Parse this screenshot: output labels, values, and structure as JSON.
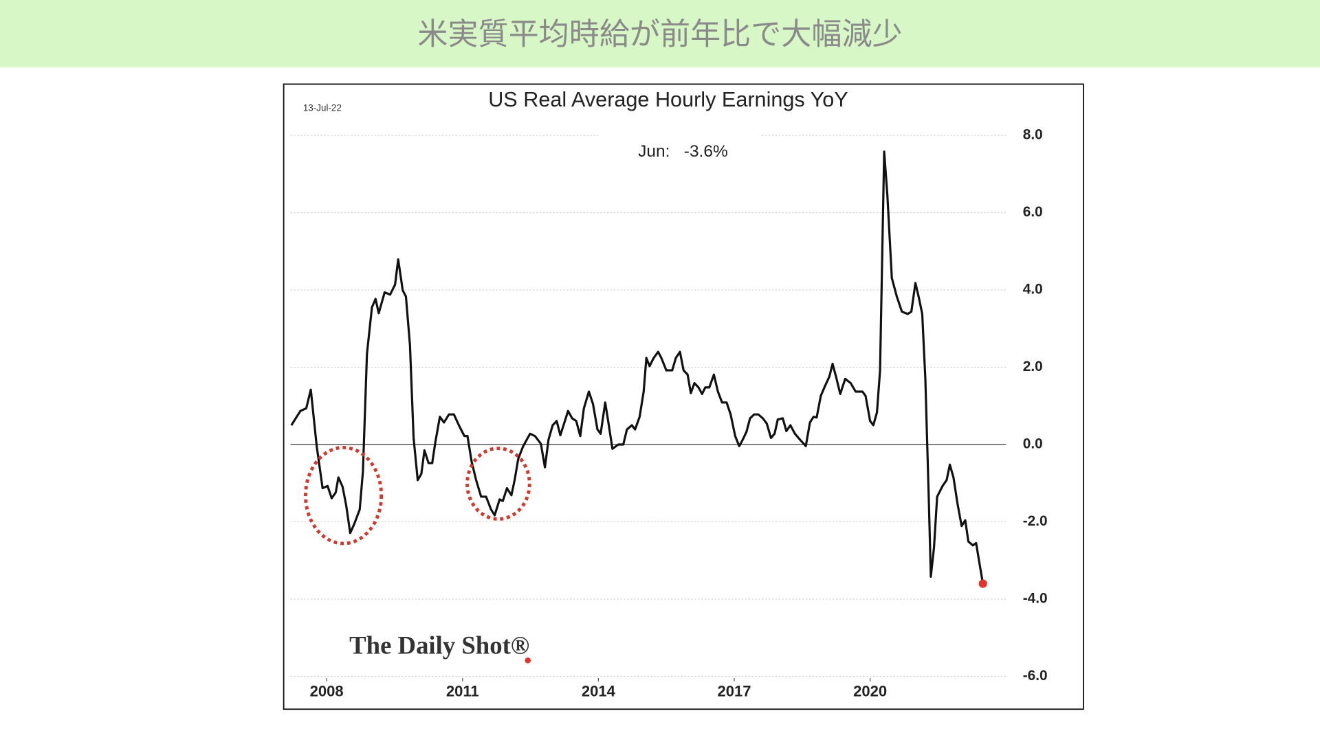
{
  "header": {
    "title": "米実質平均時給が前年比で大幅減少"
  },
  "chart_data": {
    "type": "line",
    "title": "US Real Average Hourly Earnings YoY",
    "date": "13-Jul-22",
    "annotation": "Jun:   -3.6%",
    "source": "The Daily Shot®",
    "color": "#111111",
    "marker_color": "#e0352b",
    "grid": true,
    "y_axis_side": "right",
    "x": [
      2007.22,
      2007.42,
      2007.55,
      2007.65,
      2007.78,
      2007.91,
      2008.02,
      2008.11,
      2008.2,
      2008.26,
      2008.35,
      2008.43,
      2008.52,
      2008.61,
      2008.73,
      2008.8,
      2008.89,
      2009.0,
      2009.08,
      2009.15,
      2009.28,
      2009.4,
      2009.51,
      2009.58,
      2009.68,
      2009.75,
      2009.84,
      2009.92,
      2010.01,
      2010.09,
      2010.16,
      2010.25,
      2010.33,
      2010.4,
      2010.5,
      2010.59,
      2010.7,
      2010.81,
      2010.92,
      2011.04,
      2011.11,
      2011.2,
      2011.3,
      2011.41,
      2011.52,
      2011.63,
      2011.71,
      2011.82,
      2011.89,
      2011.98,
      2012.08,
      2012.15,
      2012.23,
      2012.34,
      2012.49,
      2012.6,
      2012.73,
      2012.82,
      2012.9,
      2012.99,
      2013.08,
      2013.16,
      2013.23,
      2013.33,
      2013.42,
      2013.51,
      2013.6,
      2013.68,
      2013.79,
      2013.88,
      2013.98,
      2014.05,
      2014.15,
      2014.22,
      2014.31,
      2014.44,
      2014.55,
      2014.63,
      2014.74,
      2014.81,
      2014.91,
      2015.0,
      2015.06,
      2015.13,
      2015.22,
      2015.32,
      2015.39,
      2015.5,
      2015.63,
      2015.71,
      2015.8,
      2015.88,
      2015.97,
      2016.04,
      2016.12,
      2016.21,
      2016.29,
      2016.36,
      2016.45,
      2016.55,
      2016.64,
      2016.73,
      2016.83,
      2016.92,
      2017.02,
      2017.11,
      2017.18,
      2017.27,
      2017.35,
      2017.44,
      2017.53,
      2017.63,
      2017.72,
      2017.81,
      2017.89,
      2017.96,
      2018.07,
      2018.15,
      2018.24,
      2018.34,
      2018.45,
      2018.58,
      2018.67,
      2018.75,
      2018.82,
      2018.91,
      2019.01,
      2019.1,
      2019.17,
      2019.25,
      2019.34,
      2019.45,
      2019.57,
      2019.68,
      2019.75,
      2019.83,
      2019.9,
      2020.0,
      2020.07,
      2020.15,
      2020.22,
      2020.31,
      2020.38,
      2020.48,
      2020.59,
      2020.7,
      2020.83,
      2020.91,
      2021.0,
      2021.07,
      2021.15,
      2021.22,
      2021.3,
      2021.34,
      2021.41,
      2021.48,
      2021.6,
      2021.69,
      2021.76,
      2021.84,
      2021.93,
      2022.02,
      2022.1,
      2022.17,
      2022.27,
      2022.34,
      2022.41,
      2022.49
    ],
    "values": [
      0.5,
      0.87,
      0.94,
      1.42,
      -0.04,
      -1.13,
      -1.07,
      -1.39,
      -1.24,
      -0.85,
      -1.09,
      -1.57,
      -2.29,
      -2.05,
      -1.68,
      -0.7,
      2.35,
      3.55,
      3.77,
      3.4,
      3.94,
      3.88,
      4.14,
      4.79,
      3.99,
      3.83,
      2.57,
      0.17,
      -0.92,
      -0.76,
      -0.15,
      -0.48,
      -0.48,
      0.07,
      0.72,
      0.57,
      0.78,
      0.78,
      0.5,
      0.22,
      0.22,
      -0.44,
      -0.92,
      -1.35,
      -1.35,
      -1.68,
      -1.83,
      -1.42,
      -1.46,
      -1.13,
      -1.31,
      -0.92,
      -0.37,
      -0.04,
      0.28,
      0.22,
      0.02,
      -0.59,
      0.13,
      0.5,
      0.61,
      0.24,
      0.5,
      0.87,
      0.68,
      0.61,
      0.22,
      0.94,
      1.37,
      1.05,
      0.39,
      0.28,
      1.09,
      0.57,
      -0.11,
      0.0,
      0.0,
      0.39,
      0.5,
      0.39,
      0.72,
      1.37,
      2.24,
      2.03,
      2.24,
      2.4,
      2.24,
      1.92,
      1.92,
      2.24,
      2.4,
      1.92,
      1.81,
      1.33,
      1.59,
      1.48,
      1.31,
      1.48,
      1.48,
      1.81,
      1.37,
      1.09,
      1.09,
      0.78,
      0.22,
      -0.04,
      0.11,
      0.33,
      0.68,
      0.78,
      0.78,
      0.68,
      0.54,
      0.17,
      0.28,
      0.65,
      0.68,
      0.35,
      0.5,
      0.28,
      0.13,
      -0.04,
      0.57,
      0.72,
      0.7,
      1.26,
      1.53,
      1.76,
      2.09,
      1.74,
      1.31,
      1.7,
      1.59,
      1.37,
      1.37,
      1.37,
      1.26,
      0.61,
      0.5,
      0.83,
      1.92,
      7.58,
      6.45,
      4.31,
      3.83,
      3.44,
      3.38,
      3.44,
      4.18,
      3.83,
      3.38,
      1.7,
      -1.57,
      -3.42,
      -2.66,
      -1.35,
      -1.07,
      -0.92,
      -0.52,
      -0.85,
      -1.53,
      -2.11,
      -1.96,
      -2.51,
      -2.61,
      -2.55,
      -3.05,
      -3.6
    ],
    "xlim": [
      2007.2,
      2023.0
    ],
    "xticks": [
      2008,
      2011,
      2014,
      2017,
      2020
    ],
    "ylim": [
      -6,
      8
    ],
    "yticks": [
      {
        "value": -6,
        "label": "-6.0"
      },
      {
        "value": -4,
        "label": "-4.0"
      },
      {
        "value": -2,
        "label": "-2.0"
      },
      {
        "value": 0,
        "label": "0.0"
      },
      {
        "value": 2,
        "label": "2.0"
      },
      {
        "value": 4,
        "label": "4.0"
      },
      {
        "value": 6,
        "label": "6.0"
      },
      {
        "value": 8,
        "label": "8.0"
      }
    ]
  }
}
